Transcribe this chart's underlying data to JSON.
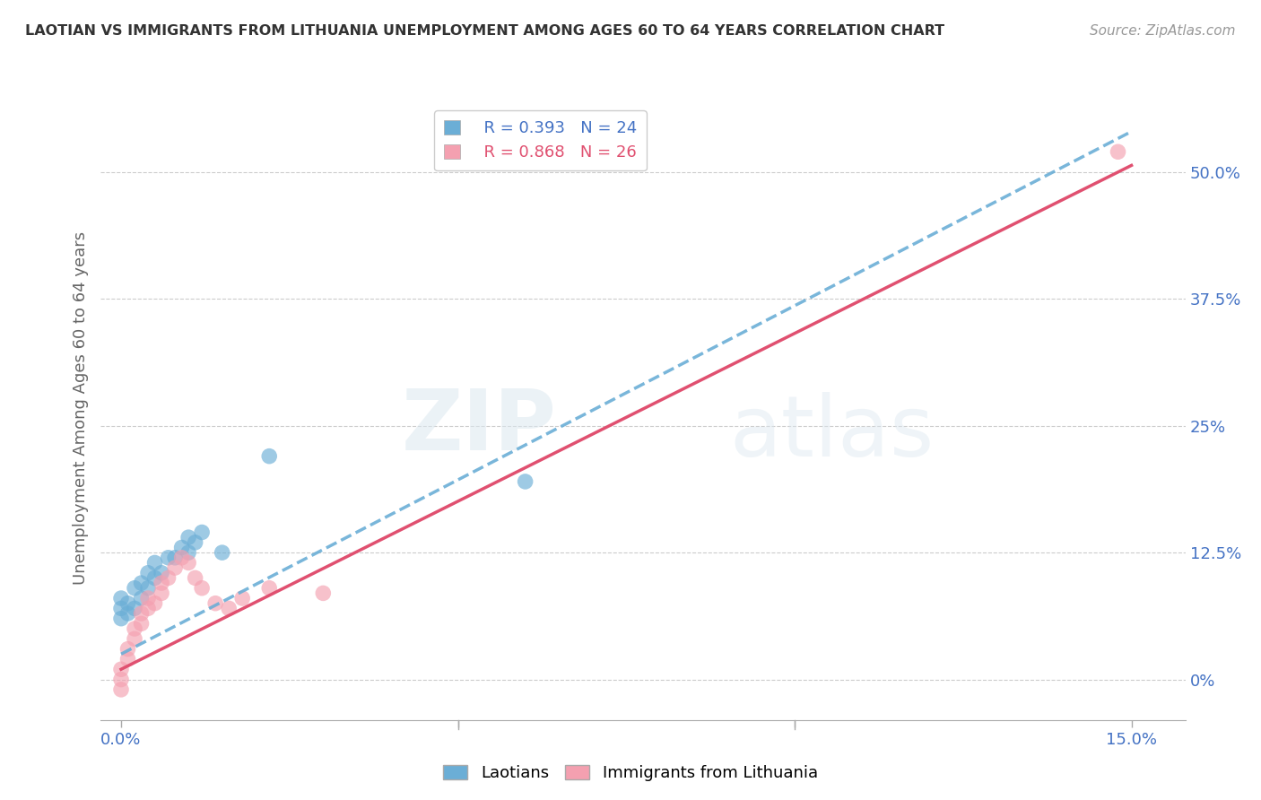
{
  "title": "LAOTIAN VS IMMIGRANTS FROM LITHUANIA UNEMPLOYMENT AMONG AGES 60 TO 64 YEARS CORRELATION CHART",
  "source": "Source: ZipAtlas.com",
  "ylabel": "Unemployment Among Ages 60 to 64 years",
  "y_ticks_right": [
    0.0,
    0.125,
    0.25,
    0.375,
    0.5
  ],
  "y_tick_labels_right": [
    "0%",
    "12.5%",
    "25%",
    "37.5%",
    "50.0%"
  ],
  "xlim": [
    -0.003,
    0.158
  ],
  "ylim": [
    -0.04,
    0.575
  ],
  "legend_r1": "R = 0.393",
  "legend_n1": "N = 24",
  "legend_r2": "R = 0.868",
  "legend_n2": "N = 26",
  "color_laotian": "#6baed6",
  "color_lithuania": "#f4a0b0",
  "color_lith_line": "#e05070",
  "color_lao_line": "#6baed6",
  "watermark_top": "ZIP",
  "watermark_bot": "atlas",
  "laotian_x": [
    0.0,
    0.0,
    0.0,
    0.001,
    0.001,
    0.002,
    0.002,
    0.003,
    0.003,
    0.004,
    0.004,
    0.005,
    0.005,
    0.006,
    0.007,
    0.008,
    0.009,
    0.01,
    0.01,
    0.011,
    0.012,
    0.015,
    0.022,
    0.06
  ],
  "laotian_y": [
    0.06,
    0.07,
    0.08,
    0.065,
    0.075,
    0.07,
    0.09,
    0.08,
    0.095,
    0.09,
    0.105,
    0.1,
    0.115,
    0.105,
    0.12,
    0.12,
    0.13,
    0.125,
    0.14,
    0.135,
    0.145,
    0.125,
    0.22,
    0.195
  ],
  "lithuania_x": [
    0.0,
    0.0,
    0.0,
    0.001,
    0.001,
    0.002,
    0.002,
    0.003,
    0.003,
    0.004,
    0.004,
    0.005,
    0.006,
    0.006,
    0.007,
    0.008,
    0.009,
    0.01,
    0.011,
    0.012,
    0.014,
    0.016,
    0.018,
    0.022,
    0.03,
    0.148
  ],
  "lithuania_y": [
    -0.01,
    0.0,
    0.01,
    0.02,
    0.03,
    0.04,
    0.05,
    0.055,
    0.065,
    0.07,
    0.08,
    0.075,
    0.085,
    0.095,
    0.1,
    0.11,
    0.12,
    0.115,
    0.1,
    0.09,
    0.075,
    0.07,
    0.08,
    0.09,
    0.085,
    0.52
  ],
  "bg_color": "#ffffff",
  "grid_color": "#cccccc"
}
